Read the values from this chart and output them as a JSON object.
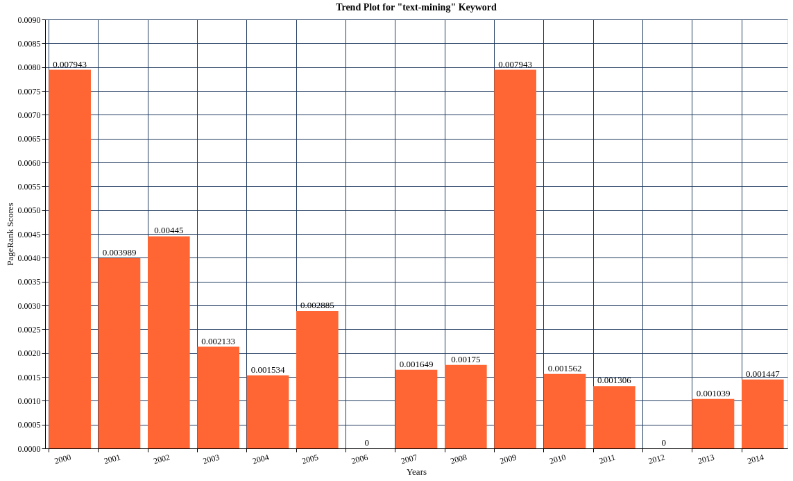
{
  "chart_data": {
    "type": "bar",
    "title": "Trend Plot for \"text-mining\" Keyword",
    "xlabel": "Years",
    "ylabel": "PageRank Scores",
    "categories": [
      "2000",
      "2001",
      "2002",
      "2003",
      "2004",
      "2005",
      "2006",
      "2007",
      "2008",
      "2009",
      "2010",
      "2011",
      "2012",
      "2013",
      "2014"
    ],
    "values": [
      0.007943,
      0.003989,
      0.00445,
      0.002133,
      0.001534,
      0.002885,
      0,
      0.001649,
      0.00175,
      0.007943,
      0.001562,
      0.001306,
      0,
      0.001039,
      0.001447
    ],
    "color": "#ff6633",
    "ylim": [
      0,
      0.009
    ],
    "yticks": [
      {
        "value": 0,
        "label": "0.0000"
      },
      {
        "value": 0.0005,
        "label": "0.0005"
      },
      {
        "value": 0.001,
        "label": "0.0010"
      },
      {
        "value": 0.0015,
        "label": "0.0015"
      },
      {
        "value": 0.002,
        "label": "0.0020"
      },
      {
        "value": 0.0025,
        "label": "0.0025"
      },
      {
        "value": 0.003,
        "label": "0.0030"
      },
      {
        "value": 0.0035,
        "label": "0.0035"
      },
      {
        "value": 0.004,
        "label": "0.0040"
      },
      {
        "value": 0.0045,
        "label": "0.0045"
      },
      {
        "value": 0.005,
        "label": "0.0050"
      },
      {
        "value": 0.0055,
        "label": "0.0055"
      },
      {
        "value": 0.006,
        "label": "0.0060"
      },
      {
        "value": 0.0065,
        "label": "0.0065"
      },
      {
        "value": 0.007,
        "label": "0.0070"
      },
      {
        "value": 0.0075,
        "label": "0.0075"
      },
      {
        "value": 0.008,
        "label": "0.0080"
      },
      {
        "value": 0.0085,
        "label": "0.0085"
      },
      {
        "value": 0.009,
        "label": "0.0090"
      }
    ],
    "grid": true,
    "data_labels": true
  }
}
